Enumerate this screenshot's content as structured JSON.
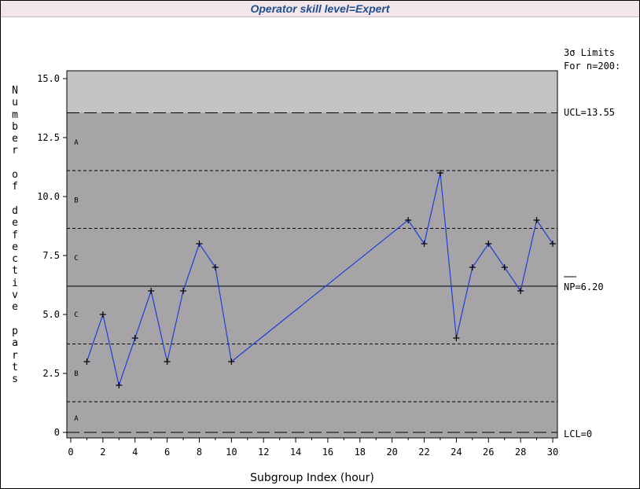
{
  "chart_data": {
    "type": "line",
    "title": "Operator skill level=Expert",
    "xlabel": "Subgroup Index (hour)",
    "ylabel": "Number of defective parts",
    "xlim": [
      0,
      30
    ],
    "ylim": [
      0,
      15
    ],
    "x_ticks": [
      0,
      2,
      4,
      6,
      8,
      10,
      12,
      14,
      16,
      18,
      20,
      22,
      24,
      26,
      28,
      30
    ],
    "y_ticks": [
      "0",
      "2.5",
      "5.0",
      "7.5",
      "10.0",
      "12.5",
      "15.0"
    ],
    "y_tick_values": [
      0,
      2.5,
      5,
      7.5,
      10,
      12.5,
      15
    ],
    "series": [
      {
        "x": [
          1,
          2,
          3,
          4,
          5,
          6,
          7,
          8,
          9,
          10,
          21,
          22,
          23,
          24,
          25,
          26,
          27,
          28,
          29,
          30
        ],
        "y": [
          3,
          5,
          2,
          4,
          6,
          3,
          6,
          8,
          7,
          3,
          9,
          8,
          11,
          4,
          7,
          8,
          7,
          6,
          9,
          8
        ],
        "color": "#1f3fd6"
      }
    ],
    "limits_header_1": "3σ Limits",
    "limits_header_2": "For n=200:",
    "ucl": 13.55,
    "center": 6.2,
    "lcl": 0,
    "ucl_label": "UCL=13.55",
    "center_label": "NP=6.20",
    "lcl_label": "LCL=0",
    "zone_boundaries": [
      1.3,
      3.75,
      8.65,
      11.1
    ],
    "zones": [
      {
        "label": "A",
        "y": 0.6
      },
      {
        "label": "B",
        "y": 2.5
      },
      {
        "label": "C",
        "y": 5.0
      },
      {
        "label": "C",
        "y": 7.4
      },
      {
        "label": "B",
        "y": 9.85
      },
      {
        "label": "A",
        "y": 12.3
      }
    ],
    "colors": {
      "plot_background": "#a6a4a7",
      "above_ucl_background": "#c4c2c5",
      "line": "#1f3fd6"
    }
  }
}
